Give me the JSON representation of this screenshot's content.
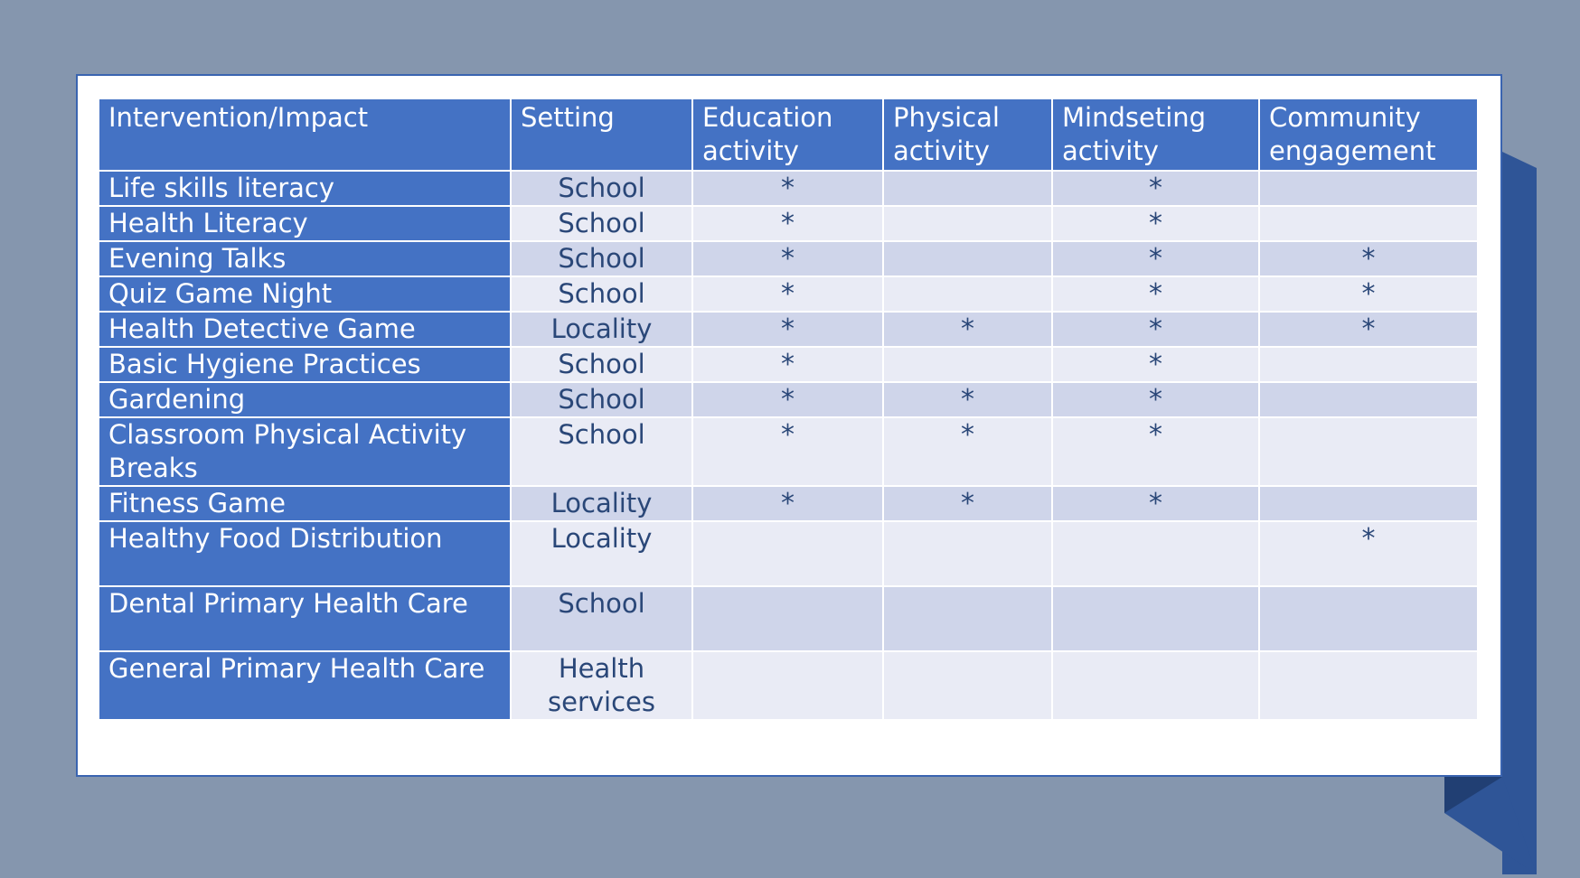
{
  "table": {
    "headers": [
      "Intervention/Impact",
      "Setting",
      "Education activity",
      "Physical activity",
      "Mindseting activity",
      "Community engagement"
    ],
    "rows": [
      {
        "intervention": "Life skills literacy",
        "setting": "School",
        "education": "*",
        "physical": "",
        "mindset": "*",
        "community": ""
      },
      {
        "intervention": "Health Literacy",
        "setting": "School",
        "education": "*",
        "physical": "",
        "mindset": "*",
        "community": ""
      },
      {
        "intervention": "Evening Talks",
        "setting": "School",
        "education": "*",
        "physical": "",
        "mindset": "*",
        "community": "*"
      },
      {
        "intervention": "Quiz Game Night",
        "setting": "School",
        "education": "*",
        "physical": "",
        "mindset": "*",
        "community": "*"
      },
      {
        "intervention": "Health Detective Game",
        "setting": "Locality",
        "education": "*",
        "physical": "*",
        "mindset": "*",
        "community": "*"
      },
      {
        "intervention": "Basic Hygiene Practices",
        "setting": "School",
        "education": "*",
        "physical": "",
        "mindset": "*",
        "community": ""
      },
      {
        "intervention": "Gardening",
        "setting": "School",
        "education": "*",
        "physical": "*",
        "mindset": "*",
        "community": ""
      },
      {
        "intervention": "Classroom Physical Activity Breaks",
        "setting": "School",
        "education": "*",
        "physical": "*",
        "mindset": "*",
        "community": ""
      },
      {
        "intervention": "Fitness Game",
        "setting": "Locality",
        "education": "*",
        "physical": "*",
        "mindset": "*",
        "community": ""
      },
      {
        "intervention": "Healthy Food Distribution",
        "setting": "Locality",
        "education": "",
        "physical": "",
        "mindset": "",
        "community": "*"
      },
      {
        "intervention": "Dental Primary Health Care",
        "setting": "School",
        "education": "",
        "physical": "",
        "mindset": "",
        "community": ""
      },
      {
        "intervention": "General Primary Health Care",
        "setting": "Health services",
        "education": "",
        "physical": "",
        "mindset": "",
        "community": ""
      }
    ]
  },
  "colors": {
    "background": "#8596ae",
    "header": "#4472c4",
    "band_dark": "#cfd5ea",
    "band_light": "#e9ebf5",
    "accent": "#2f5597"
  }
}
